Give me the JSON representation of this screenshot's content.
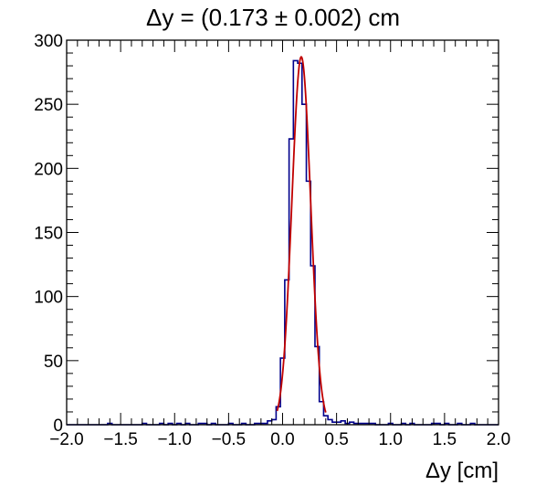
{
  "chart_data": {
    "type": "bar",
    "title": "Δy = (0.173 ± 0.002) cm",
    "xlabel": "Δy [cm]",
    "ylabel": "",
    "xlim": [
      -2.0,
      2.0
    ],
    "ylim": [
      0,
      300
    ],
    "grid": false,
    "legend": "none",
    "x_ticks": [
      -2.0,
      -1.5,
      -1.0,
      -0.5,
      0.0,
      0.5,
      1.0,
      1.5,
      2.0
    ],
    "x_tick_labels": [
      "−2.0",
      "−1.5",
      "−1.0",
      "−0.5",
      "0.0",
      "0.5",
      "1.0",
      "1.5",
      "2.0"
    ],
    "y_ticks": [
      0,
      50,
      100,
      150,
      200,
      250,
      300
    ],
    "y_tick_labels": [
      "0",
      "50",
      "100",
      "150",
      "200",
      "250",
      "300"
    ],
    "series": [
      {
        "type": "histogram",
        "color": "#00008b",
        "bin_width": 0.04,
        "bin_centers": [
          -2.0,
          -1.96,
          -1.92,
          -1.88,
          -1.84,
          -1.8,
          -1.76,
          -1.72,
          -1.68,
          -1.64,
          -1.6,
          -1.56,
          -1.52,
          -1.48,
          -1.44,
          -1.4,
          -1.36,
          -1.32,
          -1.28,
          -1.24,
          -1.2,
          -1.16,
          -1.12,
          -1.08,
          -1.04,
          -1.0,
          -0.96,
          -0.92,
          -0.88,
          -0.84,
          -0.8,
          -0.76,
          -0.72,
          -0.68,
          -0.64,
          -0.6,
          -0.56,
          -0.52,
          -0.48,
          -0.44,
          -0.4,
          -0.36,
          -0.32,
          -0.28,
          -0.24,
          -0.2,
          -0.16,
          -0.12,
          -0.08,
          -0.04,
          0.0,
          0.04,
          0.08,
          0.12,
          0.16,
          0.2,
          0.24,
          0.28,
          0.32,
          0.36,
          0.4,
          0.44,
          0.48,
          0.52,
          0.56,
          0.6,
          0.64,
          0.68,
          0.72,
          0.76,
          0.8,
          0.84,
          0.88,
          0.92,
          0.96,
          1.0,
          1.04,
          1.08,
          1.12,
          1.16,
          1.2,
          1.24,
          1.28,
          1.32,
          1.36,
          1.4,
          1.44,
          1.48,
          1.52,
          1.56,
          1.6,
          1.64,
          1.68,
          1.72,
          1.76,
          1.8,
          1.84,
          1.88,
          1.92,
          1.96,
          2.0
        ],
        "counts": [
          0,
          0,
          0,
          0,
          0,
          0,
          0,
          0,
          0,
          0,
          1,
          0,
          0,
          0,
          0,
          0,
          0,
          0,
          1,
          0,
          0,
          0,
          1,
          0,
          1,
          0,
          1,
          0,
          1,
          0,
          0,
          1,
          1,
          0,
          1,
          0,
          0,
          0,
          1,
          0,
          0,
          1,
          0,
          0,
          1,
          1,
          1,
          3,
          4,
          14,
          52,
          113,
          223,
          284,
          282,
          250,
          190,
          124,
          61,
          18,
          7,
          4,
          2,
          2,
          3,
          1,
          2,
          1,
          1,
          1,
          1,
          1,
          0,
          0,
          0,
          1,
          0,
          0,
          1,
          0,
          1,
          0,
          0,
          0,
          0,
          1,
          1,
          0,
          1,
          0,
          0,
          1,
          0,
          0,
          1,
          0,
          0,
          0,
          0,
          0,
          0
        ]
      },
      {
        "type": "gaussian-fit",
        "color": "#c00000",
        "amplitude": 287,
        "mean": 0.173,
        "sigma": 0.087,
        "x_range": [
          -0.05,
          0.4
        ]
      }
    ]
  }
}
